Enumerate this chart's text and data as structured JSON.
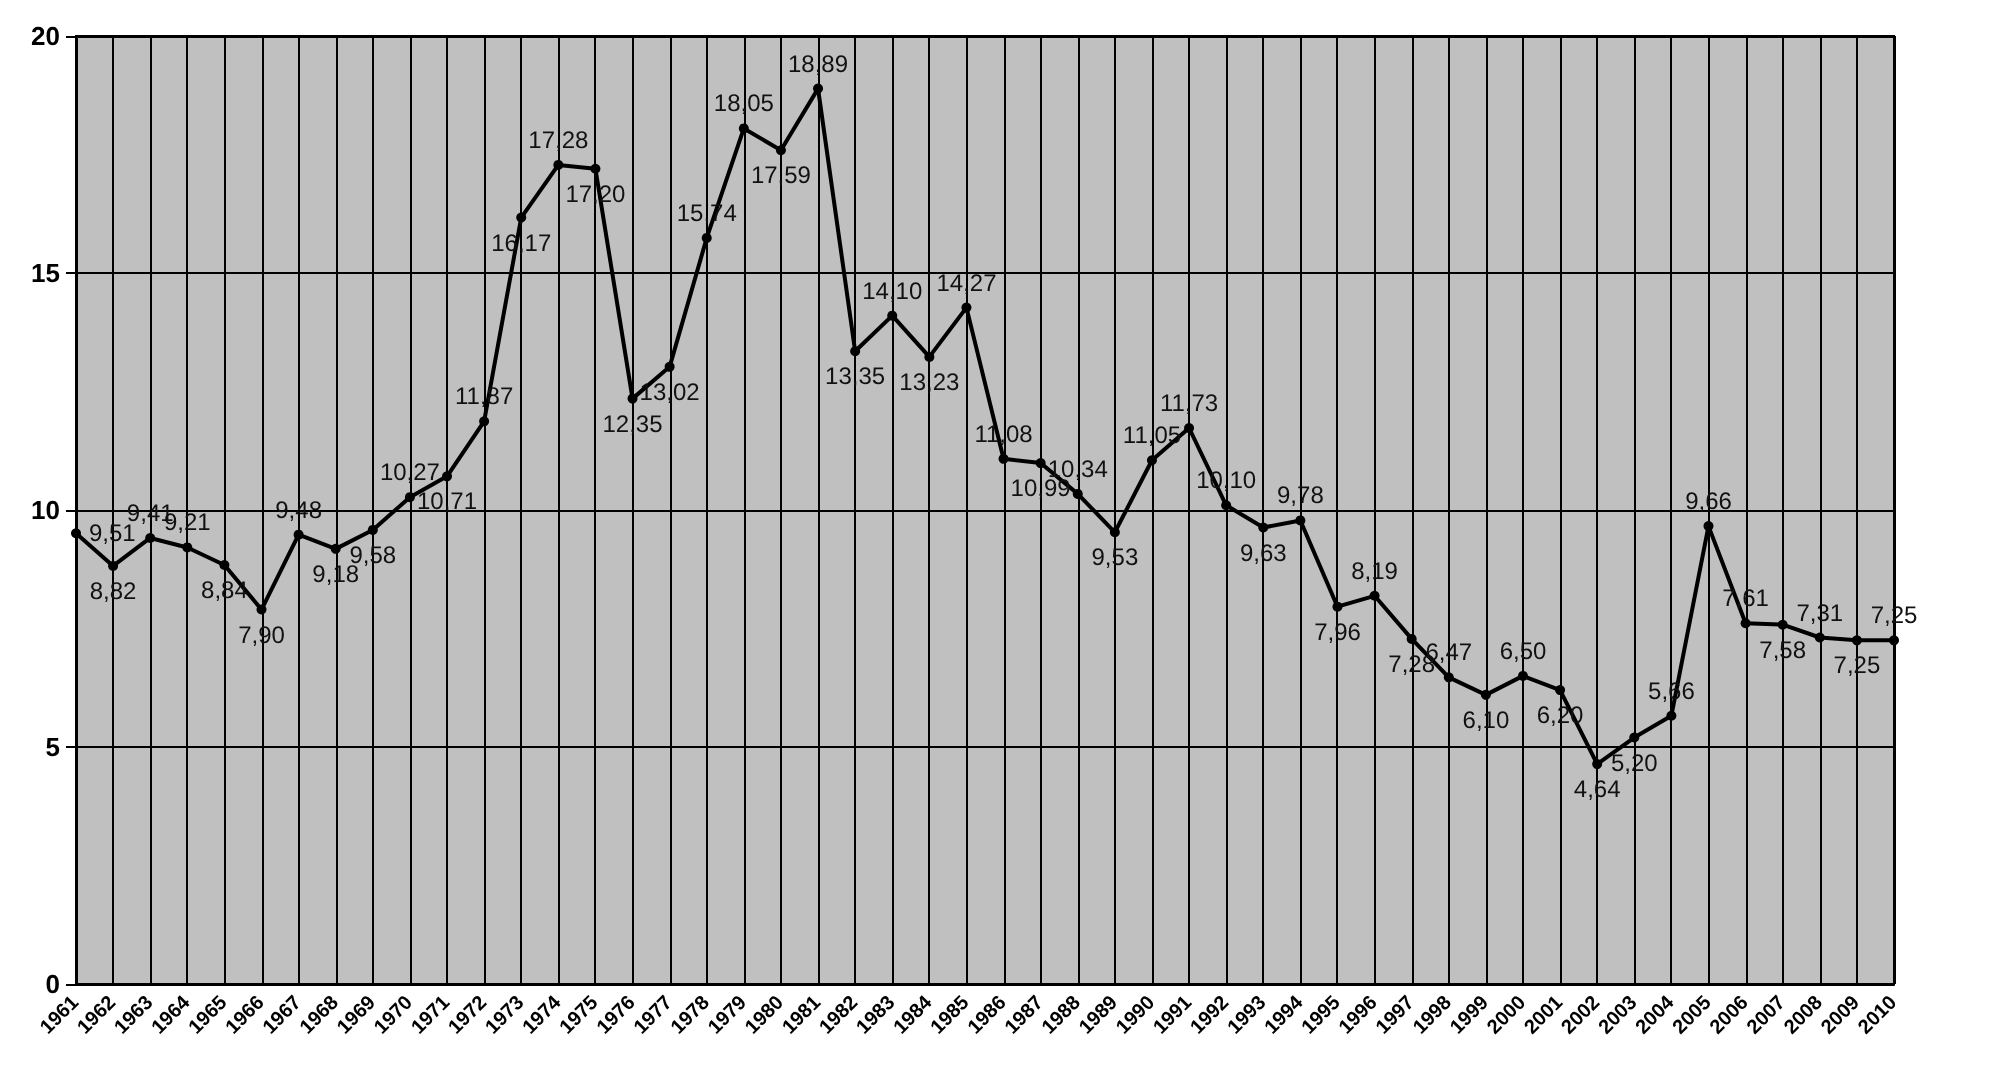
{
  "chart_data": {
    "type": "line",
    "categories": [
      "1961",
      "1962",
      "1963",
      "1964",
      "1965",
      "1966",
      "1967",
      "1968",
      "1969",
      "1970",
      "1971",
      "1972",
      "1973",
      "1974",
      "1975",
      "1976",
      "1977",
      "1978",
      "1979",
      "1980",
      "1981",
      "1982",
      "1983",
      "1984",
      "1985",
      "1986",
      "1987",
      "1988",
      "1989",
      "1990",
      "1991",
      "1992",
      "1993",
      "1994",
      "1995",
      "1996",
      "1997",
      "1998",
      "1999",
      "2000",
      "2001",
      "2002",
      "2003",
      "2004",
      "2005",
      "2006",
      "2007",
      "2008",
      "2009",
      "2010"
    ],
    "series": [
      {
        "color": "#000000",
        "values": [
          9.51,
          8.82,
          9.41,
          9.21,
          8.84,
          7.9,
          9.48,
          9.18,
          9.58,
          10.27,
          10.71,
          11.87,
          16.17,
          17.28,
          17.2,
          12.35,
          13.02,
          15.74,
          18.05,
          17.59,
          18.89,
          13.35,
          14.1,
          13.23,
          14.27,
          11.08,
          10.99,
          10.34,
          9.53,
          11.05,
          11.73,
          10.1,
          9.63,
          9.78,
          7.96,
          8.19,
          7.28,
          6.47,
          6.1,
          6.5,
          6.2,
          4.64,
          5.2,
          5.66,
          9.66,
          7.61,
          7.58,
          7.31,
          7.25,
          7.25
        ],
        "value_labels": [
          "9,51",
          "8,82",
          "9,41",
          "9,21",
          "8,84",
          "7,90",
          "9,48",
          "9,18",
          "9,58",
          "10,27",
          "10,71",
          "11,87",
          "16,17",
          "17,28",
          "17,20",
          "12,35",
          "13,02",
          "15,74",
          "18,05",
          "17,59",
          "18,89",
          "13,35",
          "14,10",
          "13,23",
          "14,27",
          "11,08",
          "10,99",
          "10,34",
          "9,53",
          "11,05",
          "11,73",
          "10,10",
          "9,63",
          "9,78",
          "7,96",
          "8,19",
          "7,28",
          "6,47",
          "6,10",
          "6,50",
          "6,20",
          "4,64",
          "5,20",
          "5,66",
          "9,66",
          "7,61",
          "7,58",
          "7,31",
          "7,25",
          "7,25"
        ]
      }
    ],
    "ylim": [
      0,
      20
    ],
    "yticks": [
      0,
      5,
      10,
      15,
      20
    ],
    "grid": true,
    "marker": "circle",
    "line_style": "solid"
  }
}
